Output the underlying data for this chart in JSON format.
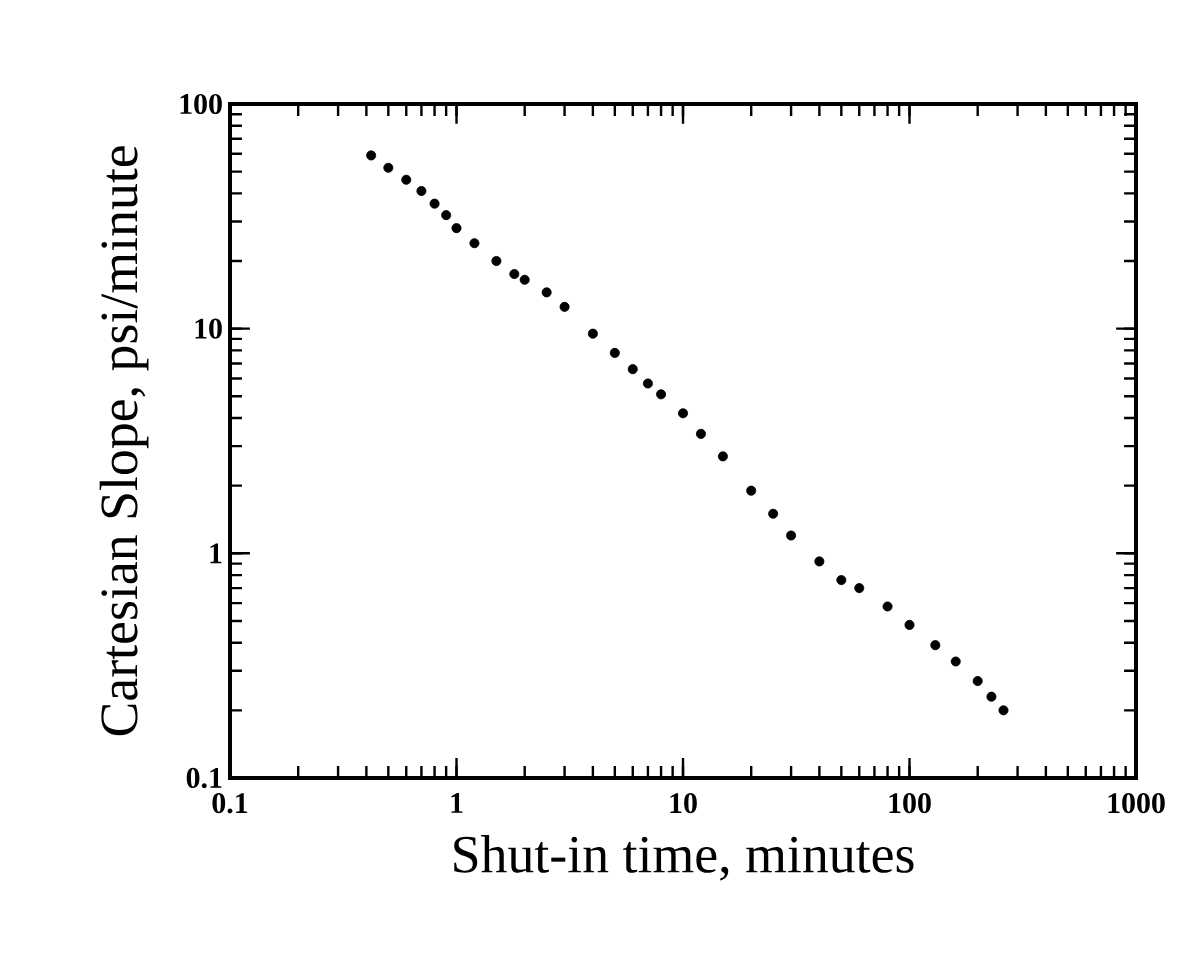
{
  "chart_data": {
    "type": "scatter",
    "xlabel": "Shut-in time, minutes",
    "ylabel": "Cartesian Slope, psi/minute",
    "log": "xy",
    "grid": false,
    "xlim": [
      0.1,
      1000
    ],
    "ylim": [
      0.1,
      100
    ],
    "xticks": [
      0.1,
      1,
      10,
      100,
      1000
    ],
    "yticks": [
      0.1,
      1,
      10,
      100
    ],
    "series": [
      {
        "color": "#000000",
        "x": [
          0.42,
          0.5,
          0.6,
          0.7,
          0.8,
          0.9,
          1,
          1.2,
          1.5,
          1.8,
          2,
          2.5,
          3,
          4,
          5,
          6,
          7,
          8,
          10,
          12,
          15,
          20,
          25,
          30,
          40,
          50,
          60,
          80,
          100,
          130,
          160,
          200,
          230,
          260
        ],
        "values": [
          59,
          52,
          46,
          41,
          36,
          32,
          28,
          24,
          20,
          17.5,
          16.5,
          14.5,
          12.5,
          9.5,
          7.8,
          6.6,
          5.7,
          5.1,
          4.2,
          3.4,
          2.7,
          1.9,
          1.5,
          1.2,
          0.92,
          0.76,
          0.7,
          0.58,
          0.48,
          0.39,
          0.33,
          0.27,
          0.23,
          0.2
        ]
      }
    ]
  }
}
